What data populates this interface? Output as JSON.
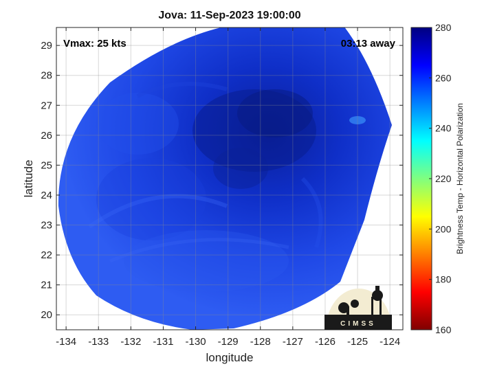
{
  "header": {
    "title": "Jova: 11-Sep-2023 19:00:00"
  },
  "annotations": {
    "vmax": "Vmax: 25 kts",
    "away": "03:13 away"
  },
  "axes": {
    "xlabel": "longitude",
    "ylabel": "latitude",
    "xticks": [
      "-134",
      "-133",
      "-132",
      "-131",
      "-130",
      "-129",
      "-128",
      "-127",
      "-126",
      "-125",
      "-124"
    ],
    "yticks": [
      "20",
      "21",
      "22",
      "23",
      "24",
      "25",
      "26",
      "27",
      "28",
      "29"
    ]
  },
  "colorbar": {
    "label": "Brightness Temp - Horizontal Polarization",
    "ticks": [
      "160",
      "180",
      "200",
      "220",
      "240",
      "260",
      "280"
    ]
  },
  "logo": {
    "text": "CIMSS"
  },
  "chart_data": {
    "type": "heatmap",
    "xlim": [
      -134.3,
      -123.6
    ],
    "ylim": [
      19.5,
      29.6
    ],
    "clim": [
      160,
      280
    ],
    "colormap": "jet",
    "grid": true,
    "center": {
      "lon": -128.3,
      "lat": 25.8
    },
    "field_min_approx": 262,
    "field_max_approx": 268
  }
}
